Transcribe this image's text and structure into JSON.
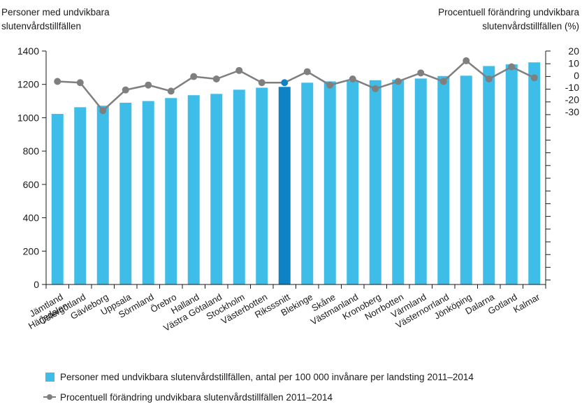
{
  "chart_data": {
    "type": "bar+line",
    "left_axis_label_lines": [
      "Personer med undvikbara",
      "slutenvårdstillfällen"
    ],
    "right_axis_label_lines": [
      "Procentuell förändring undvikbara",
      "slutenvårdstillfällen (%)"
    ],
    "y_left": {
      "min": 0,
      "max": 1400,
      "ticks": [
        0,
        200,
        400,
        600,
        800,
        1000,
        1200,
        1400
      ]
    },
    "y_right": {
      "min": -30,
      "max": 20,
      "tick_labels": [
        20,
        10,
        0,
        -10,
        -20,
        -30
      ]
    },
    "categories": [
      "Jämtland Härjedalen",
      "Östergötland",
      "Gävleborg",
      "Uppsala",
      "Sörmland",
      "Örebro",
      "Halland",
      "Västra Götaland",
      "Stockholm",
      "Västerbotten",
      "Riksssnitt",
      "Blekinge",
      "Skåne",
      "Västmanland",
      "Kronoberg",
      "Norrbotten",
      "Värmland",
      "Västernorrland",
      "Jönköping",
      "Dalarna",
      "Gotland",
      "Kalmar"
    ],
    "category_label_lines": [
      [
        "Jämtland",
        "Härjedalen"
      ],
      [
        "Östergötland"
      ],
      [
        "Gävleborg"
      ],
      [
        "Uppsala"
      ],
      [
        "Sörmland"
      ],
      [
        "Örebro"
      ],
      [
        "Halland"
      ],
      [
        "Västra Götaland"
      ],
      [
        "Stockholm"
      ],
      [
        "Västerbotten"
      ],
      [
        "Riksssnitt"
      ],
      [
        "Blekinge"
      ],
      [
        "Skåne"
      ],
      [
        "Västmanland"
      ],
      [
        "Kronoberg"
      ],
      [
        "Norrbotten"
      ],
      [
        "Värmland"
      ],
      [
        "Västernorrland"
      ],
      [
        "Jönköping"
      ],
      [
        "Dalarna"
      ],
      [
        "Gotland"
      ],
      [
        "Kalmar"
      ]
    ],
    "highlight_category": "Riksssnitt",
    "series": [
      {
        "name": "Personer med undvikbara slutenvårdstillfällen, antal per 100 000 invånare per landsting 2011–2014",
        "type": "bar",
        "axis": "left",
        "values": [
          1023,
          1063,
          1072,
          1090,
          1100,
          1118,
          1135,
          1143,
          1168,
          1180,
          1185,
          1210,
          1218,
          1220,
          1225,
          1228,
          1235,
          1250,
          1252,
          1310,
          1320,
          1332
        ]
      },
      {
        "name": "Procentuell förändring undvikbara slutenvårdstillfällen 2011–2014",
        "type": "line",
        "axis": "right",
        "values": [
          -5,
          -6,
          -29,
          -12,
          -8,
          -13,
          -1,
          -3,
          4,
          -6,
          -6,
          3,
          -8,
          -3,
          -11,
          -5,
          2,
          -5,
          12,
          -3,
          7,
          -2
        ]
      }
    ],
    "colors": {
      "bar": "#3dbde8",
      "bar_highlight": "#0d83c6",
      "line": "#7f7f7f",
      "marker_highlight": "#0d83c6"
    },
    "legend_position": "bottom-left",
    "grid": false
  }
}
